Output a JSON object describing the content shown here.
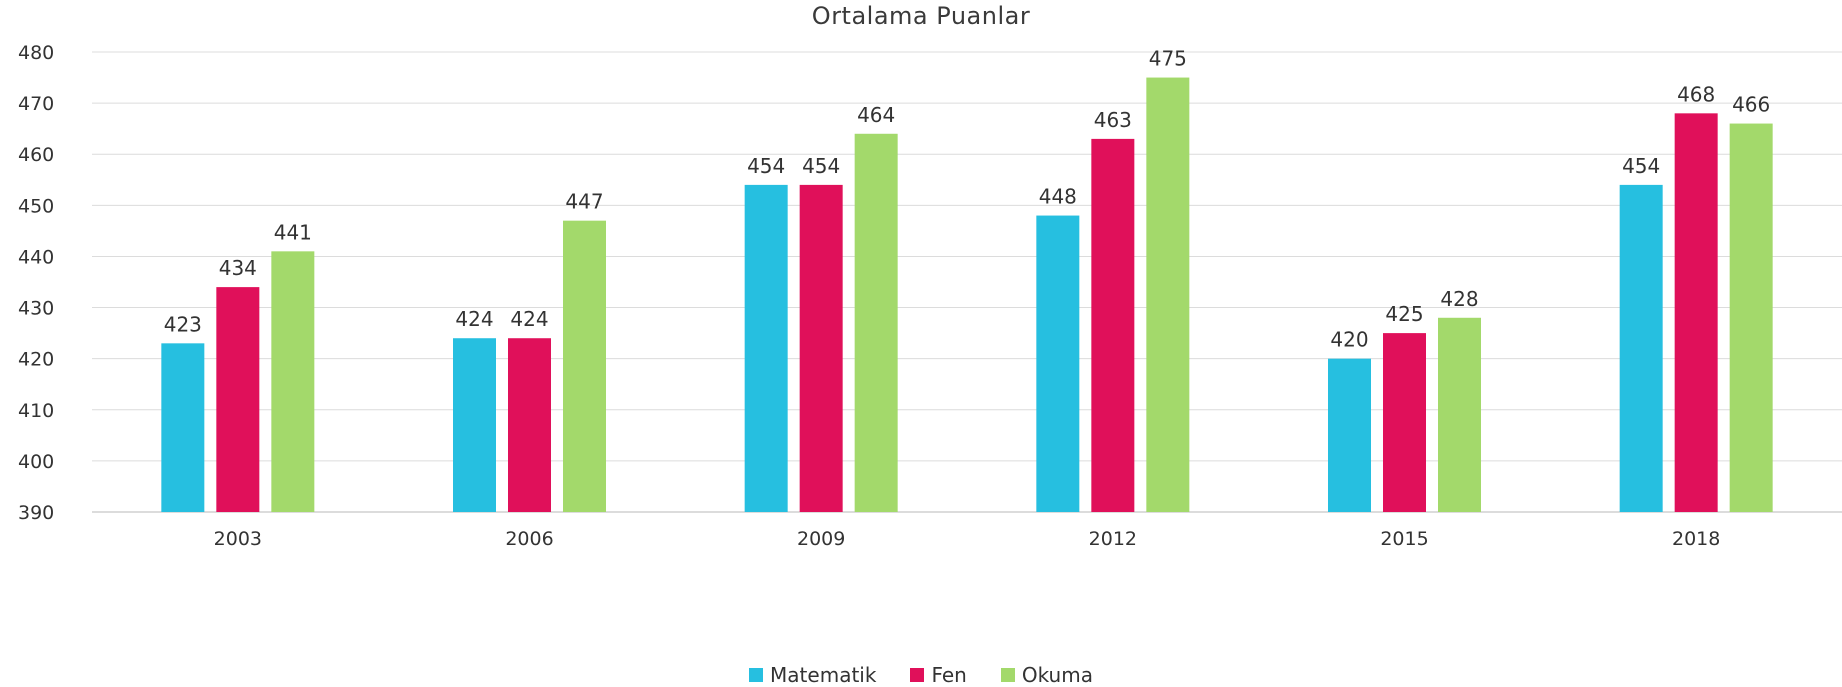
{
  "chart_data": {
    "type": "bar",
    "title": "Ortalama Puanlar",
    "xlabel": "",
    "ylabel": "",
    "categories": [
      "2003",
      "2006",
      "2009",
      "2012",
      "2015",
      "2018"
    ],
    "series": [
      {
        "name": "Matematik",
        "color": "#26bfe0",
        "values": [
          423,
          424,
          454,
          448,
          420,
          454
        ]
      },
      {
        "name": "Fen",
        "color": "#e0105a",
        "values": [
          434,
          424,
          454,
          463,
          425,
          468
        ]
      },
      {
        "name": "Okuma",
        "color": "#a3d96b",
        "values": [
          441,
          447,
          464,
          475,
          428,
          466
        ]
      }
    ],
    "ylim": [
      390,
      480
    ],
    "yticks": [
      390,
      400,
      410,
      420,
      430,
      440,
      450,
      460,
      470,
      480
    ],
    "grid": true,
    "legend_position": "bottom"
  }
}
